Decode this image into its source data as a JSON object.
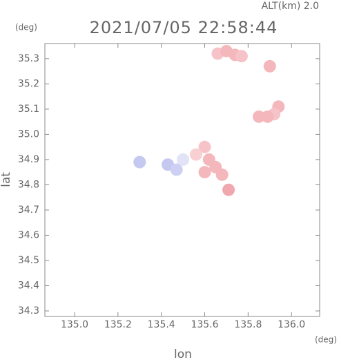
{
  "chart_data": {
    "type": "scatter",
    "subtitle": "ALT(km)  2.0",
    "title": "2021/07/05 22:58:44",
    "x_label": "lon",
    "y_label": "lat",
    "x_unit": "(deg)",
    "y_unit": "(deg)",
    "x": [
      135.66,
      135.7,
      135.74,
      135.77,
      135.9,
      135.94,
      135.92,
      135.85,
      135.89,
      135.6,
      135.62,
      135.65,
      135.68,
      135.56,
      135.6,
      135.71,
      135.43,
      135.47,
      135.3,
      135.5
    ],
    "y": [
      35.32,
      35.33,
      35.315,
      35.31,
      35.27,
      35.11,
      35.08,
      35.07,
      35.07,
      34.95,
      34.9,
      34.87,
      34.84,
      34.92,
      34.85,
      34.78,
      34.88,
      34.86,
      34.89,
      34.9
    ],
    "colors": [
      "#f6c4c8",
      "#f4b8bc",
      "#f4b8bc",
      "#f6c4c8",
      "#f4b8bc",
      "#f4b8bc",
      "#f6c4c8",
      "#f4b8bc",
      "#f4b8bc",
      "#f6c4c8",
      "#f4b8bc",
      "#f4b8bc",
      "#f4b8bc",
      "#f8d0d2",
      "#f4b8bc",
      "#f0a8ae",
      "#c5c8ef",
      "#cdd0f2",
      "#c5c8ef",
      "#e2e3f6"
    ],
    "xlim": [
      134.863,
      136.13
    ],
    "ylim": [
      34.278,
      35.36
    ],
    "xticks": [
      {
        "value": 135,
        "label": "135.0"
      },
      135.2,
      135.4,
      135.6,
      135.8,
      {
        "value": 136,
        "label": "136.0"
      }
    ],
    "yticks": [
      34.3,
      34.4,
      34.5,
      34.6,
      34.7,
      34.8,
      34.9,
      {
        "value": 35,
        "label": "35.0"
      },
      35.1,
      35.2,
      35.3
    ]
  }
}
